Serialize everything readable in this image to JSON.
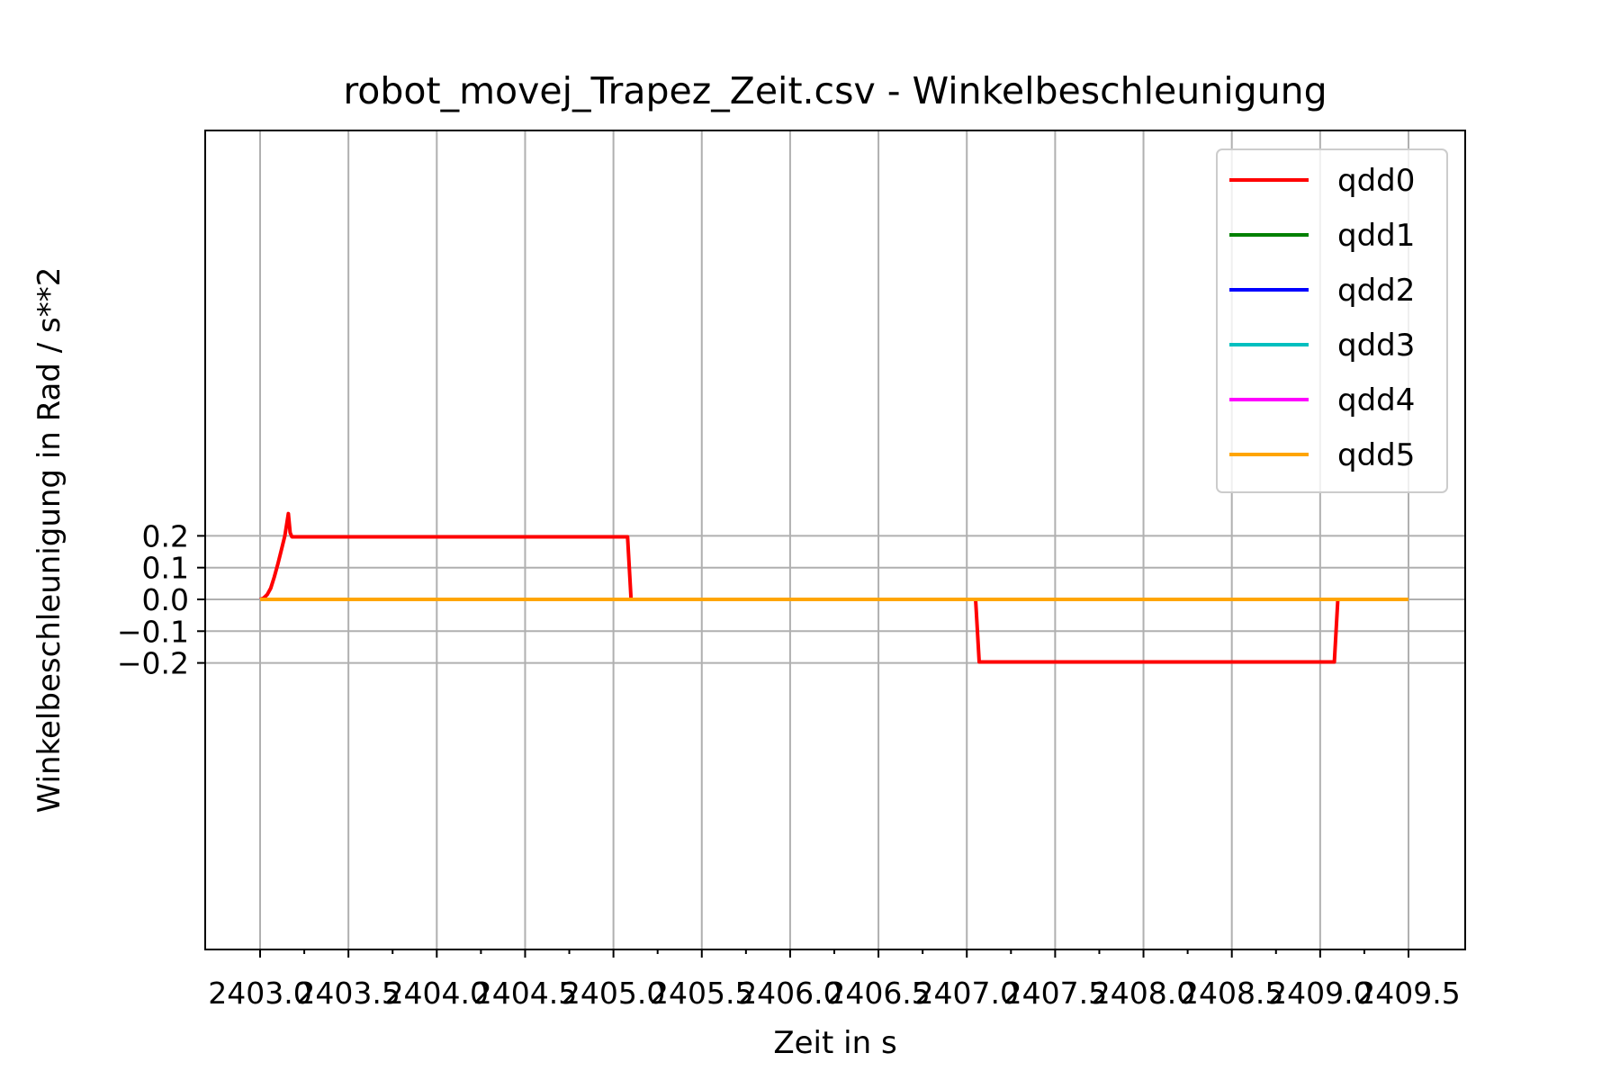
{
  "chart_data": {
    "type": "line",
    "title": "robot_movej_Trapez_Zeit.csv - Winkelbeschleunigung",
    "xlabel": "Zeit in s",
    "ylabel": "Winkelbeschleunigung in Rad / s**2",
    "xlim": [
      2403.0,
      2409.5
    ],
    "ylim": [
      -0.21,
      0.285
    ],
    "xticks": [
      {
        "value": 2403.0,
        "label": "2403.0"
      },
      {
        "value": 2403.5,
        "label": "2403.5"
      },
      {
        "value": 2404.0,
        "label": "2404.0"
      },
      {
        "value": 2404.5,
        "label": "2404.5"
      },
      {
        "value": 2405.0,
        "label": "2405.0"
      },
      {
        "value": 2405.5,
        "label": "2405.5"
      },
      {
        "value": 2406.0,
        "label": "2406.0"
      },
      {
        "value": 2406.5,
        "label": "2406.5"
      },
      {
        "value": 2407.0,
        "label": "2407.0"
      },
      {
        "value": 2407.5,
        "label": "2407.5"
      },
      {
        "value": 2408.0,
        "label": "2408.0"
      },
      {
        "value": 2408.5,
        "label": "2408.5"
      },
      {
        "value": 2409.0,
        "label": "2409.0"
      },
      {
        "value": 2409.5,
        "label": "2409.5"
      }
    ],
    "yticks": [
      {
        "value": 0.2,
        "label": "0.2"
      },
      {
        "value": 0.1,
        "label": "0.1"
      },
      {
        "value": 0.0,
        "label": "0.0"
      },
      {
        "value": -0.1,
        "label": "−0.1"
      },
      {
        "value": -0.2,
        "label": "−0.2"
      }
    ],
    "grid": true,
    "legend_position": "top-right",
    "series": [
      {
        "name": "qdd0",
        "color": "#ff0000",
        "x": [
          2403.0,
          2403.02,
          2403.04,
          2403.06,
          2403.08,
          2403.1,
          2403.12,
          2403.14,
          2403.16,
          2403.17,
          2403.18,
          2403.19,
          2403.2,
          2403.22,
          2405.08,
          2405.1,
          2409.5
        ],
        "y": [
          0.0,
          0.004,
          0.015,
          0.035,
          0.07,
          0.11,
          0.155,
          0.2,
          0.27,
          0.21,
          0.197,
          0.197,
          0.197,
          0.197,
          0.197,
          0.0,
          0.0
        ]
      },
      {
        "name": "qdd0",
        "color": "#ff0000",
        "x": [
          2407.05,
          2407.07,
          2409.08,
          2409.1
        ],
        "y": [
          0.0,
          -0.197,
          -0.197,
          0.0
        ]
      },
      {
        "name": "qdd1",
        "color": "#008000",
        "x": [
          2403.0,
          2409.5
        ],
        "y": [
          0.0,
          0.0
        ]
      },
      {
        "name": "qdd2",
        "color": "#0000ff",
        "x": [
          2403.0,
          2409.5
        ],
        "y": [
          0.0,
          0.0
        ]
      },
      {
        "name": "qdd3",
        "color": "#00bfbf",
        "x": [
          2403.0,
          2409.5
        ],
        "y": [
          0.0,
          0.0
        ]
      },
      {
        "name": "qdd4",
        "color": "#ff00ff",
        "x": [
          2403.0,
          2409.5
        ],
        "y": [
          0.0,
          0.0
        ]
      },
      {
        "name": "qdd5",
        "color": "#ffa500",
        "x": [
          2403.0,
          2409.5
        ],
        "y": [
          0.0,
          0.0
        ]
      }
    ],
    "legend": [
      {
        "name": "qdd0",
        "color": "#ff0000"
      },
      {
        "name": "qdd1",
        "color": "#008000"
      },
      {
        "name": "qdd2",
        "color": "#0000ff"
      },
      {
        "name": "qdd3",
        "color": "#00bfbf"
      },
      {
        "name": "qdd4",
        "color": "#ff00ff"
      },
      {
        "name": "qdd5",
        "color": "#ffa500"
      }
    ]
  }
}
